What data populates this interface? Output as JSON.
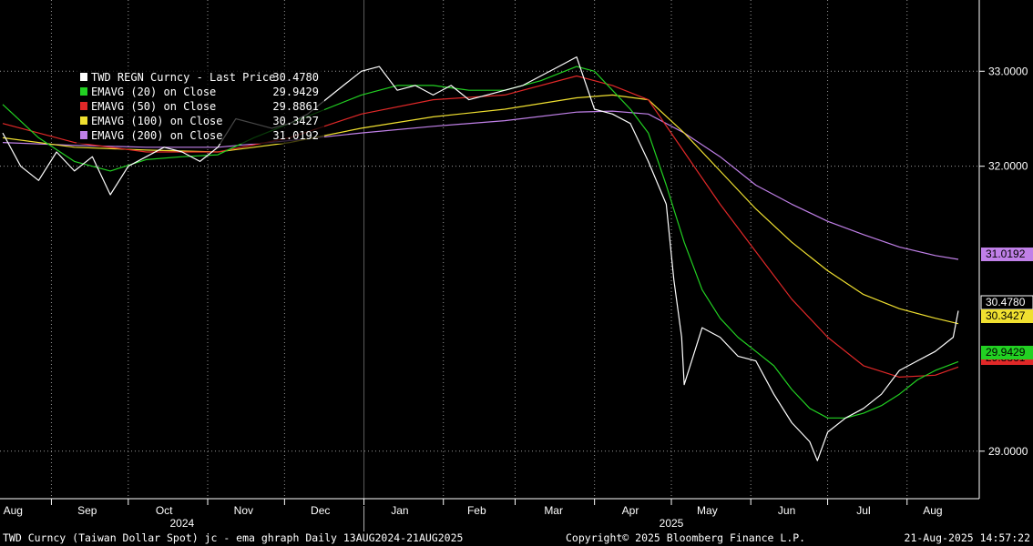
{
  "chart_data": {
    "type": "line",
    "security": "TWD Currency",
    "x_range": [
      "2024-08-13",
      "2025-08-21"
    ],
    "ylim": [
      28.5,
      33.75
    ],
    "y_ticks": [
      29.0,
      32.0,
      33.0
    ],
    "y_tick_labels": [
      "29.0000",
      "32.0000",
      "33.0000"
    ],
    "grid": true,
    "legend_placement": "top-left",
    "month_labels": [
      "Aug",
      "Sep",
      "Oct",
      "Nov",
      "Dec",
      "Jan",
      "Feb",
      "Mar",
      "Apr",
      "May",
      "Jun",
      "Jul",
      "Aug"
    ],
    "year_labels": [
      "2024",
      "2025"
    ],
    "series": [
      {
        "name": "TWD REGN Curncy - Last Price",
        "legend_label": "TWD REGN Curncy - Last Price",
        "last": "30.4780",
        "color": "#ffffff",
        "x": [
          "2024-08-13",
          "2024-08-20",
          "2024-08-27",
          "2024-09-03",
          "2024-09-10",
          "2024-09-17",
          "2024-09-24",
          "2024-10-01",
          "2024-10-08",
          "2024-10-15",
          "2024-10-22",
          "2024-10-29",
          "2024-11-05",
          "2024-11-12",
          "2024-11-19",
          "2024-11-26",
          "2024-12-03",
          "2024-12-10",
          "2024-12-17",
          "2024-12-24",
          "2024-12-31",
          "2025-01-07",
          "2025-01-14",
          "2025-01-21",
          "2025-01-28",
          "2025-02-04",
          "2025-02-11",
          "2025-02-18",
          "2025-02-25",
          "2025-03-04",
          "2025-03-11",
          "2025-03-18",
          "2025-03-25",
          "2025-04-01",
          "2025-04-08",
          "2025-04-15",
          "2025-04-22",
          "2025-04-29",
          "2025-05-02",
          "2025-05-05",
          "2025-05-06",
          "2025-05-13",
          "2025-05-20",
          "2025-05-27",
          "2025-06-03",
          "2025-06-10",
          "2025-06-17",
          "2025-06-24",
          "2025-06-27",
          "2025-07-01",
          "2025-07-08",
          "2025-07-15",
          "2025-07-22",
          "2025-07-29",
          "2025-08-05",
          "2025-08-12",
          "2025-08-19",
          "2025-08-21"
        ],
        "values": [
          32.35,
          32.0,
          31.85,
          32.15,
          31.95,
          32.1,
          31.7,
          32.0,
          32.1,
          32.2,
          32.15,
          32.05,
          32.2,
          32.5,
          32.45,
          32.4,
          32.45,
          32.55,
          32.7,
          32.85,
          33.0,
          33.05,
          32.8,
          32.85,
          32.75,
          32.85,
          32.7,
          32.75,
          32.8,
          32.85,
          32.95,
          33.05,
          33.15,
          32.6,
          32.55,
          32.45,
          32.05,
          31.6,
          30.8,
          30.2,
          29.7,
          30.3,
          30.2,
          30.0,
          29.95,
          29.6,
          29.3,
          29.1,
          28.9,
          29.2,
          29.35,
          29.45,
          29.6,
          29.85,
          29.95,
          30.05,
          30.2,
          30.478
        ]
      },
      {
        "name": "EMAVG (20) on Close",
        "legend_label": "EMAVG (20)  on Close",
        "last": "29.9429",
        "color": "#22d022",
        "x": [
          "2024-08-13",
          "2024-08-27",
          "2024-09-10",
          "2024-09-24",
          "2024-10-08",
          "2024-10-22",
          "2024-11-05",
          "2024-11-19",
          "2024-12-03",
          "2024-12-17",
          "2024-12-31",
          "2025-01-14",
          "2025-01-28",
          "2025-02-11",
          "2025-02-25",
          "2025-03-11",
          "2025-03-25",
          "2025-04-01",
          "2025-04-08",
          "2025-04-15",
          "2025-04-22",
          "2025-04-29",
          "2025-05-06",
          "2025-05-13",
          "2025-05-20",
          "2025-05-27",
          "2025-06-03",
          "2025-06-10",
          "2025-06-17",
          "2025-06-24",
          "2025-07-01",
          "2025-07-08",
          "2025-07-15",
          "2025-07-22",
          "2025-07-29",
          "2025-08-05",
          "2025-08-12",
          "2025-08-21"
        ],
        "values": [
          32.65,
          32.3,
          32.05,
          31.95,
          32.07,
          32.1,
          32.12,
          32.3,
          32.45,
          32.6,
          32.75,
          32.85,
          32.85,
          32.8,
          32.8,
          32.9,
          33.05,
          33.0,
          32.8,
          32.6,
          32.35,
          31.8,
          31.2,
          30.7,
          30.4,
          30.2,
          30.05,
          29.9,
          29.65,
          29.45,
          29.35,
          29.35,
          29.4,
          29.48,
          29.6,
          29.75,
          29.85,
          29.9429
        ]
      },
      {
        "name": "EMAVG (50) on Close",
        "legend_label": "EMAVG (50)  on Close",
        "last": "29.8861",
        "color": "#e02828",
        "x": [
          "2024-08-13",
          "2024-09-10",
          "2024-10-08",
          "2024-11-05",
          "2024-12-03",
          "2024-12-31",
          "2025-01-28",
          "2025-02-25",
          "2025-03-25",
          "2025-04-08",
          "2025-04-22",
          "2025-05-06",
          "2025-05-20",
          "2025-06-03",
          "2025-06-17",
          "2025-07-01",
          "2025-07-15",
          "2025-07-29",
          "2025-08-12",
          "2025-08-21"
        ],
        "values": [
          32.45,
          32.25,
          32.15,
          32.15,
          32.3,
          32.55,
          32.7,
          32.75,
          32.95,
          32.85,
          32.7,
          32.15,
          31.6,
          31.1,
          30.6,
          30.2,
          29.9,
          29.78,
          29.8,
          29.8861
        ]
      },
      {
        "name": "EMAVG (100) on Close",
        "legend_label": "EMAVG (100)  on Close",
        "last": "30.3427",
        "color": "#f0e030",
        "x": [
          "2024-08-13",
          "2024-09-10",
          "2024-10-08",
          "2024-11-05",
          "2024-12-03",
          "2024-12-31",
          "2025-01-28",
          "2025-02-25",
          "2025-03-25",
          "2025-04-08",
          "2025-04-22",
          "2025-05-06",
          "2025-05-20",
          "2025-06-03",
          "2025-06-17",
          "2025-07-01",
          "2025-07-15",
          "2025-07-29",
          "2025-08-12",
          "2025-08-21"
        ],
        "values": [
          32.3,
          32.2,
          32.17,
          32.15,
          32.25,
          32.4,
          32.52,
          32.6,
          32.72,
          32.75,
          32.7,
          32.35,
          31.95,
          31.55,
          31.2,
          30.9,
          30.65,
          30.5,
          30.4,
          30.3427
        ]
      },
      {
        "name": "EMAVG (200) on Close",
        "legend_label": "EMAVG (200)  on Close",
        "last": "31.0192",
        "color": "#c080e8",
        "x": [
          "2024-08-13",
          "2024-09-10",
          "2024-10-08",
          "2024-11-05",
          "2024-12-03",
          "2024-12-31",
          "2025-01-28",
          "2025-02-25",
          "2025-03-25",
          "2025-04-08",
          "2025-04-22",
          "2025-05-06",
          "2025-05-20",
          "2025-06-03",
          "2025-06-17",
          "2025-07-01",
          "2025-07-15",
          "2025-07-29",
          "2025-08-12",
          "2025-08-21"
        ],
        "values": [
          32.25,
          32.22,
          32.2,
          32.2,
          32.27,
          32.35,
          32.42,
          32.48,
          32.57,
          32.58,
          32.55,
          32.35,
          32.1,
          31.8,
          31.6,
          31.42,
          31.28,
          31.15,
          31.06,
          31.0192
        ]
      }
    ]
  },
  "footer": {
    "left": "TWD Curncy (Taiwan Dollar Spot) jc - ema ghraph  Daily 13AUG2024-21AUG2025",
    "center": "Copyright© 2025 Bloomberg Finance L.P.",
    "right": "21-Aug-2025 14:57:22"
  }
}
